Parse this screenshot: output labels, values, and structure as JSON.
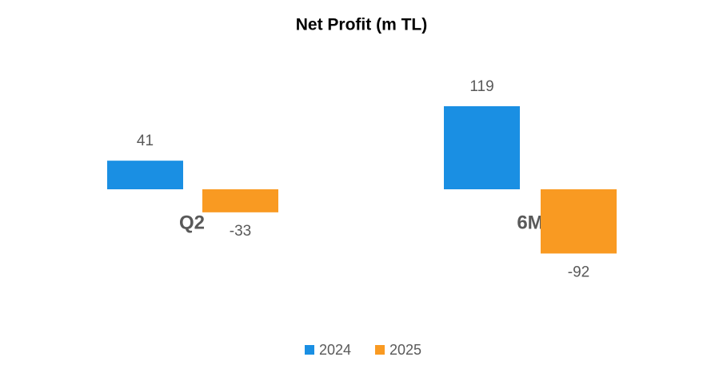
{
  "chart_data": {
    "type": "bar",
    "title": "Net Profit (m TL)",
    "categories": [
      "Q2",
      "6M"
    ],
    "series": [
      {
        "name": "2024",
        "color": "#1a8fe3",
        "values": [
          41,
          119
        ]
      },
      {
        "name": "2025",
        "color": "#f99a22",
        "values": [
          -33,
          -92
        ]
      }
    ],
    "legend": "bottom"
  }
}
